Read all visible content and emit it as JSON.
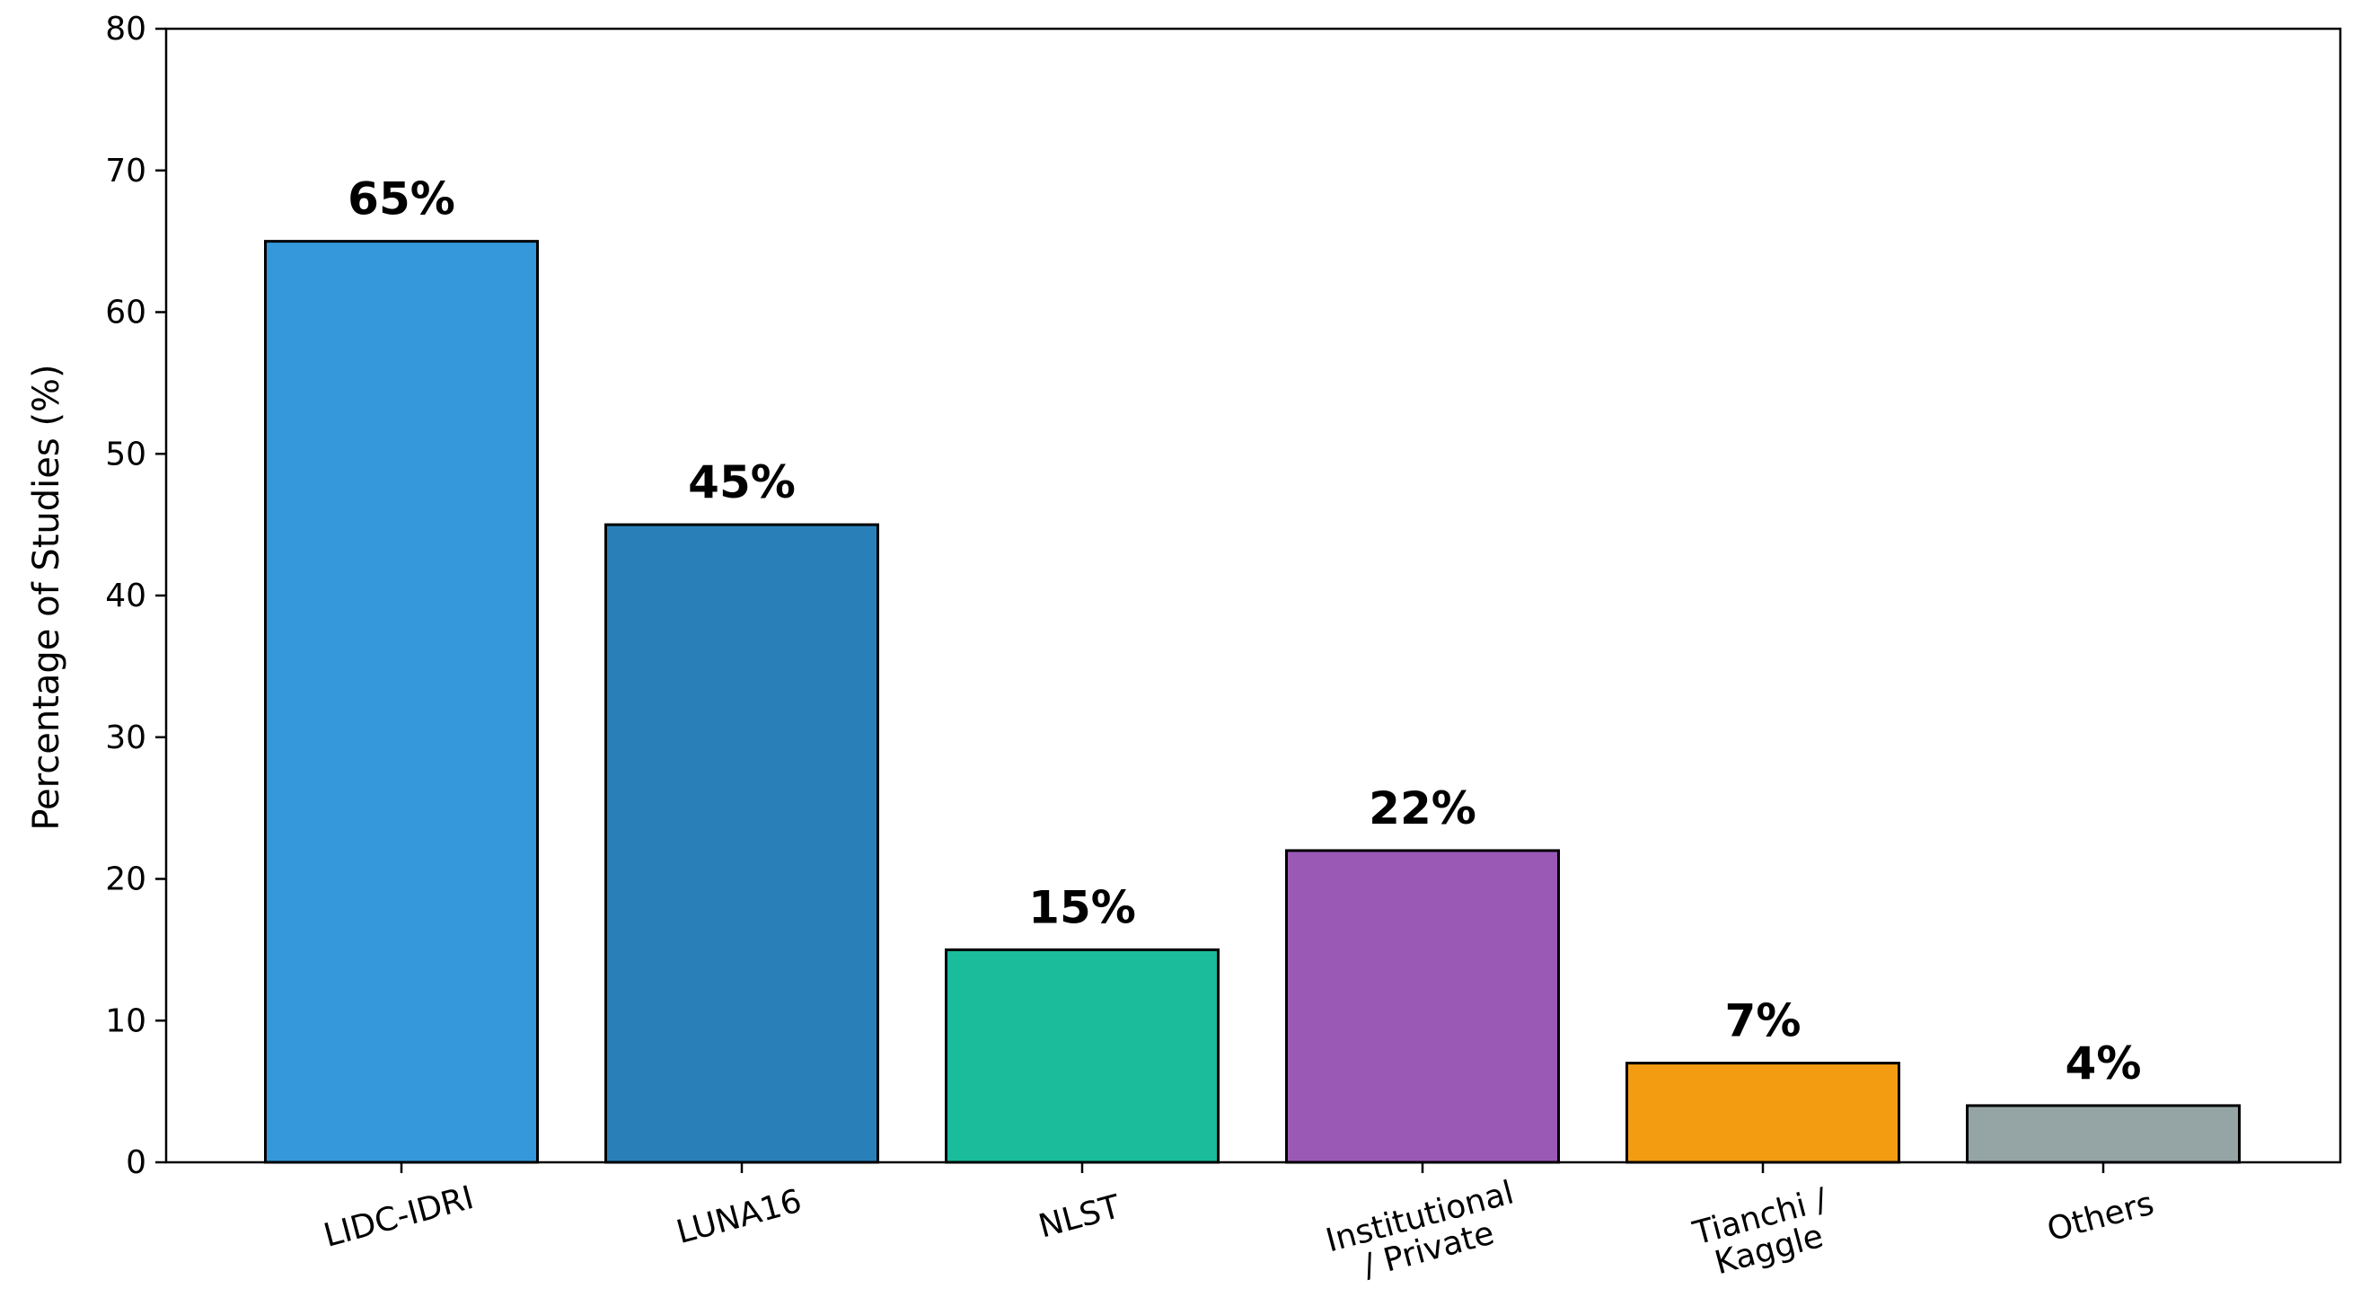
{
  "chart_data": {
    "type": "bar",
    "title": "",
    "xlabel": "",
    "ylabel": "Percentage of Studies (%)",
    "ylim": [
      0,
      80
    ],
    "yticks": [
      0,
      10,
      20,
      30,
      40,
      50,
      60,
      70,
      80
    ],
    "grid": false,
    "categories": [
      [
        "LIDC-IDRI"
      ],
      [
        "LUNA16"
      ],
      [
        "NLST"
      ],
      [
        "Institutional",
        "/ Private"
      ],
      [
        "Tianchi /",
        "Kaggle"
      ],
      [
        "Others"
      ]
    ],
    "values": [
      65,
      45,
      15,
      22,
      7,
      4
    ],
    "value_labels": [
      "65%",
      "45%",
      "15%",
      "22%",
      "7%",
      "4%"
    ],
    "colors": [
      "#3498db",
      "#2980b9",
      "#1abc9c",
      "#9b59b6",
      "#f39c12",
      "#95a5a6"
    ],
    "edge_color": "#000000"
  }
}
